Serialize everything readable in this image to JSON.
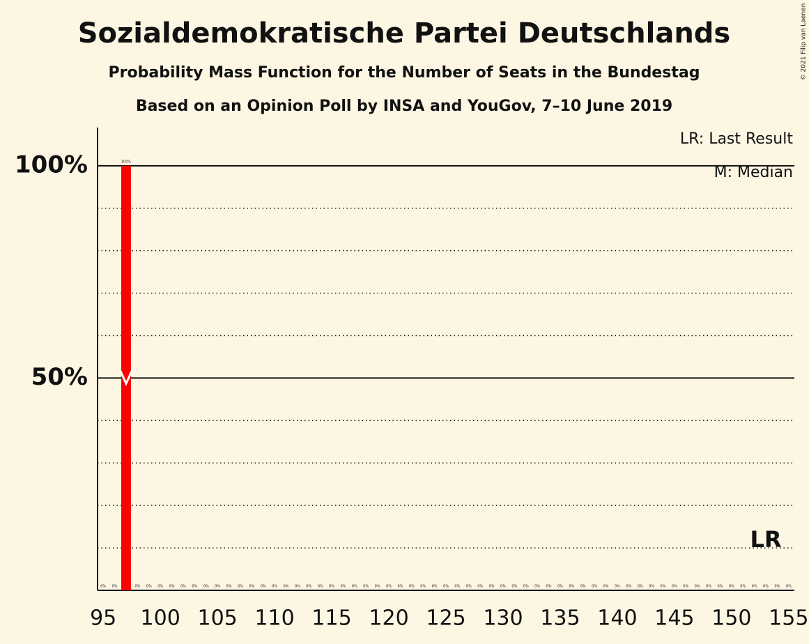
{
  "chart_data": {
    "type": "bar",
    "title": "Sozialdemokratische Partei Deutschlands",
    "subtitle": "Probability Mass Function for the Number of Seats in the Bundestag",
    "subtitle2": "Based on an Opinion Poll by INSA and YouGov, 7–10 June 2019",
    "copyright": "© 2021 Filip van Laenen",
    "legend": [
      "LR: Last Result",
      "M: Median"
    ],
    "color": "#ff0000",
    "x": [
      95,
      96,
      97,
      98,
      99,
      100,
      101,
      102,
      103,
      104,
      105,
      106,
      107,
      108,
      109,
      110,
      111,
      112,
      113,
      114,
      115,
      116,
      117,
      118,
      119,
      120,
      121,
      122,
      123,
      124,
      125,
      126,
      127,
      128,
      129,
      130,
      131,
      132,
      133,
      134,
      135,
      136,
      137,
      138,
      139,
      140,
      141,
      142,
      143,
      144,
      145,
      146,
      147,
      148,
      149,
      150,
      151,
      152,
      153,
      154,
      155
    ],
    "values": [
      0,
      0,
      100,
      0,
      0,
      0,
      0,
      0,
      0,
      0,
      0,
      0,
      0,
      0,
      0,
      0,
      0,
      0,
      0,
      0,
      0,
      0,
      0,
      0,
      0,
      0,
      0,
      0,
      0,
      0,
      0,
      0,
      0,
      0,
      0,
      0,
      0,
      0,
      0,
      0,
      0,
      0,
      0,
      0,
      0,
      0,
      0,
      0,
      0,
      0,
      0,
      0,
      0,
      0,
      0,
      0,
      0,
      0,
      0,
      0,
      0
    ],
    "value_labels": [
      "0%",
      "0%",
      "100%",
      "0%",
      "0%",
      "0%",
      "0%",
      "0%",
      "0%",
      "0%",
      "0%",
      "0%",
      "0%",
      "0%",
      "0%",
      "0%",
      "0%",
      "0%",
      "0%",
      "0%",
      "0%",
      "0%",
      "0%",
      "0%",
      "0%",
      "0%",
      "0%",
      "0%",
      "0%",
      "0%",
      "0%",
      "0%",
      "0%",
      "0%",
      "0%",
      "0%",
      "0%",
      "0%",
      "0%",
      "0%",
      "0%",
      "0%",
      "0%",
      "0%",
      "0%",
      "0%",
      "0%",
      "0%",
      "0%",
      "0%",
      "0%",
      "0%",
      "0%",
      "0%",
      "0%",
      "0%",
      "0%",
      "0%",
      "0%",
      "0%",
      "0%"
    ],
    "xlim": [
      94.5,
      155.5
    ],
    "xticks": [
      95,
      100,
      105,
      110,
      115,
      120,
      125,
      130,
      135,
      140,
      145,
      150,
      155
    ],
    "ylim": [
      0,
      109
    ],
    "yticks": [
      {
        "value": 50,
        "label": "50%"
      },
      {
        "value": 100,
        "label": "100%"
      }
    ],
    "minor_grid": [
      10,
      20,
      30,
      40,
      60,
      70,
      80,
      90
    ],
    "median": 97,
    "median_probability": 50,
    "last_result": 153,
    "last_result_label": "LR"
  }
}
